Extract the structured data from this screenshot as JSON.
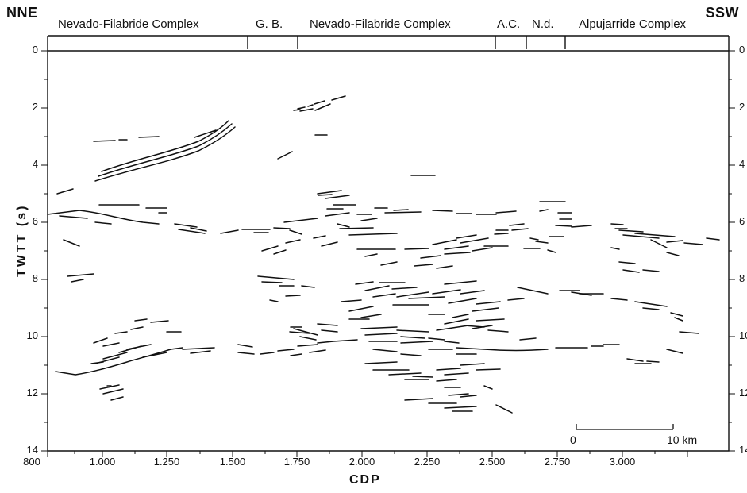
{
  "directions": {
    "left": "NNE",
    "right": "SSW"
  },
  "units": [
    {
      "label": "Nevado-Filabride Complex"
    },
    {
      "label": "G. B."
    },
    {
      "label": "Nevado-Filabride Complex"
    },
    {
      "label": "A.C."
    },
    {
      "label": "N.d."
    },
    {
      "label": "Alpujarride Complex"
    }
  ],
  "axes": {
    "y_label": "TWTT (s)",
    "y_ticks": [
      "0",
      "2",
      "4",
      "6",
      "8",
      "10",
      "12",
      "14"
    ],
    "x_label": "CDP",
    "x_ticks": [
      "800",
      "1.000",
      "1.250",
      "1.500",
      "1.750",
      "2.000",
      "2.250",
      "2.500",
      "2.750",
      "3.000"
    ]
  },
  "scale_bar": {
    "start_label": "0",
    "end_label": "10 km"
  }
}
